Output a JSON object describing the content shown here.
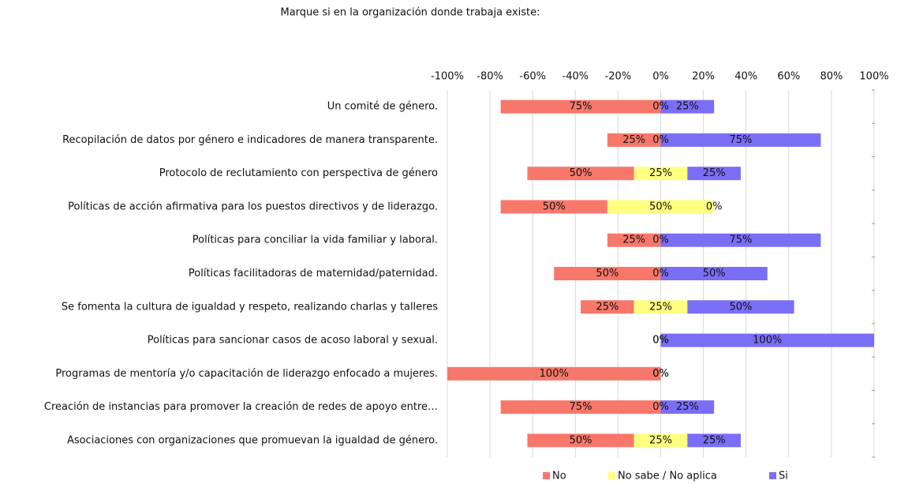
{
  "chart_data": {
    "type": "diverging_bar",
    "title": "Marque si en la organización donde trabaja existe:",
    "categories": [
      "Un comité de género.",
      "Recopilación de datos por género e indicadores de manera transparente.",
      "Protocolo de reclutamiento con perspectiva de género",
      "Políticas de acción afirmativa para los puestos directivos y de liderazgo.",
      "Políticas para conciliar la vida familiar y laboral.",
      "Políticas facilitadoras de maternidad/paternidad.",
      "Se fomenta la cultura de igualdad y respeto, realizando charlas y talleres",
      "Políticas para sancionar casos de acoso laboral y sexual.",
      "Programas de mentoría y/o capacitación de liderazgo enfocado a mujeres.",
      "Creación de instancias para promover la creación de redes de apoyo entre…",
      "Asociaciones con organizaciones que promuevan la igualdad de género."
    ],
    "series": [
      {
        "name": "No",
        "color": "#f7786b",
        "values": [
          75,
          25,
          50,
          50,
          25,
          50,
          25,
          0,
          100,
          75,
          50
        ],
        "value_labels": [
          "75%",
          "25%",
          "50%",
          "50%",
          "25%",
          "50%",
          "25%",
          "0%",
          "100%",
          "75%",
          "50%"
        ]
      },
      {
        "name": "No sabe / No aplica",
        "color": "#ffff80",
        "values": [
          0,
          0,
          25,
          50,
          0,
          0,
          25,
          0,
          0,
          0,
          25
        ],
        "value_labels": [
          "0%",
          "0%",
          "25%",
          "50%",
          "0%",
          "0%",
          "25%",
          "0%",
          "0%",
          "0%",
          "25%"
        ]
      },
      {
        "name": "Si",
        "color": "#7b6ef6",
        "values": [
          25,
          75,
          25,
          0,
          75,
          50,
          50,
          100,
          0,
          25,
          25
        ],
        "value_labels": [
          "25%",
          "75%",
          "25%",
          "0%",
          "75%",
          "50%",
          "50%",
          "100%",
          "0%",
          "25%",
          "25%"
        ]
      }
    ],
    "xlim": [
      -100,
      100
    ],
    "xticks": [
      {
        "value": -100,
        "label": "-100%"
      },
      {
        "value": -80,
        "label": "-80%"
      },
      {
        "value": -60,
        "label": "-60%"
      },
      {
        "value": -40,
        "label": "-40%"
      },
      {
        "value": -20,
        "label": "-20%"
      },
      {
        "value": 0,
        "label": "0%"
      },
      {
        "value": 20,
        "label": "20%"
      },
      {
        "value": 40,
        "label": "40%"
      },
      {
        "value": 60,
        "label": "60%"
      },
      {
        "value": 80,
        "label": "80%"
      },
      {
        "value": 100,
        "label": "100%"
      }
    ],
    "grid": true,
    "legend": "bottom"
  }
}
